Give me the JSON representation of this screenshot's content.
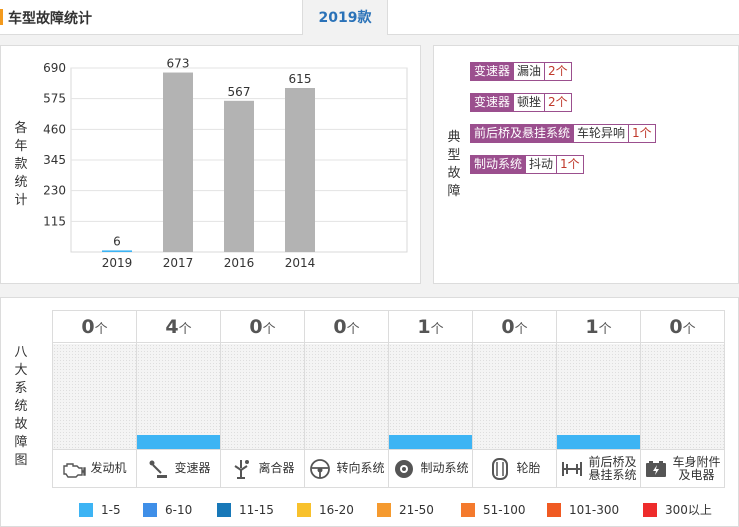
{
  "header": {
    "title": "车型故障统计",
    "active_tab": "2019款"
  },
  "chart_panel": {
    "label": "各年款统计"
  },
  "chart_data": {
    "type": "bar",
    "categories": [
      "2019",
      "2017",
      "2016",
      "2014"
    ],
    "values": [
      6,
      673,
      567,
      615
    ],
    "yticks": [
      115,
      230,
      345,
      460,
      575,
      690
    ],
    "ylim": [
      0,
      690
    ],
    "bar_color": "#b3b3b3",
    "highlight_color": "#3db4f4",
    "grid": true
  },
  "faults_panel": {
    "label": "典型故障",
    "items": [
      {
        "system": "变速器",
        "symptom": "漏油",
        "count": "2个"
      },
      {
        "system": "变速器",
        "symptom": "顿挫",
        "count": "2个"
      },
      {
        "system": "前后桥及悬挂系统",
        "symptom": "车轮异响",
        "count": "1个"
      },
      {
        "system": "制动系统",
        "symptom": "抖动",
        "count": "1个"
      }
    ]
  },
  "systems_panel": {
    "label": "八大系统故障图",
    "unit": "个",
    "systems": [
      {
        "name": "发动机",
        "count": "0",
        "level": 0,
        "icon": "engine-icon"
      },
      {
        "name": "变速器",
        "count": "4",
        "level": 0.13,
        "icon": "gear-shift-icon"
      },
      {
        "name": "离合器",
        "count": "0",
        "level": 0,
        "icon": "clutch-icon"
      },
      {
        "name": "转向系统",
        "count": "0",
        "level": 0,
        "icon": "steering-wheel-icon"
      },
      {
        "name": "制动系统",
        "count": "1",
        "level": 0.13,
        "icon": "brake-disc-icon"
      },
      {
        "name": "轮胎",
        "count": "0",
        "level": 0,
        "icon": "tire-icon"
      },
      {
        "name": "前后桥及悬挂系统",
        "name_lines": [
          "前后桥及",
          "悬挂系统"
        ],
        "count": "1",
        "level": 0.13,
        "icon": "suspension-icon"
      },
      {
        "name": "车身附件及电器",
        "name_lines": [
          "车身附件",
          "及电器"
        ],
        "count": "0",
        "level": 0,
        "icon": "battery-icon"
      }
    ]
  },
  "legend": [
    {
      "label": "1-5",
      "color": "#3db4f4"
    },
    {
      "label": "6-10",
      "color": "#3f8fe8"
    },
    {
      "label": "11-15",
      "color": "#1878b8"
    },
    {
      "label": "16-20",
      "color": "#f8c12c"
    },
    {
      "label": "21-50",
      "color": "#f59a2f"
    },
    {
      "label": "51-100",
      "color": "#f47a2d"
    },
    {
      "label": "101-300",
      "color": "#f05a22"
    },
    {
      "label": "300以上",
      "color": "#ee2c2c"
    }
  ]
}
